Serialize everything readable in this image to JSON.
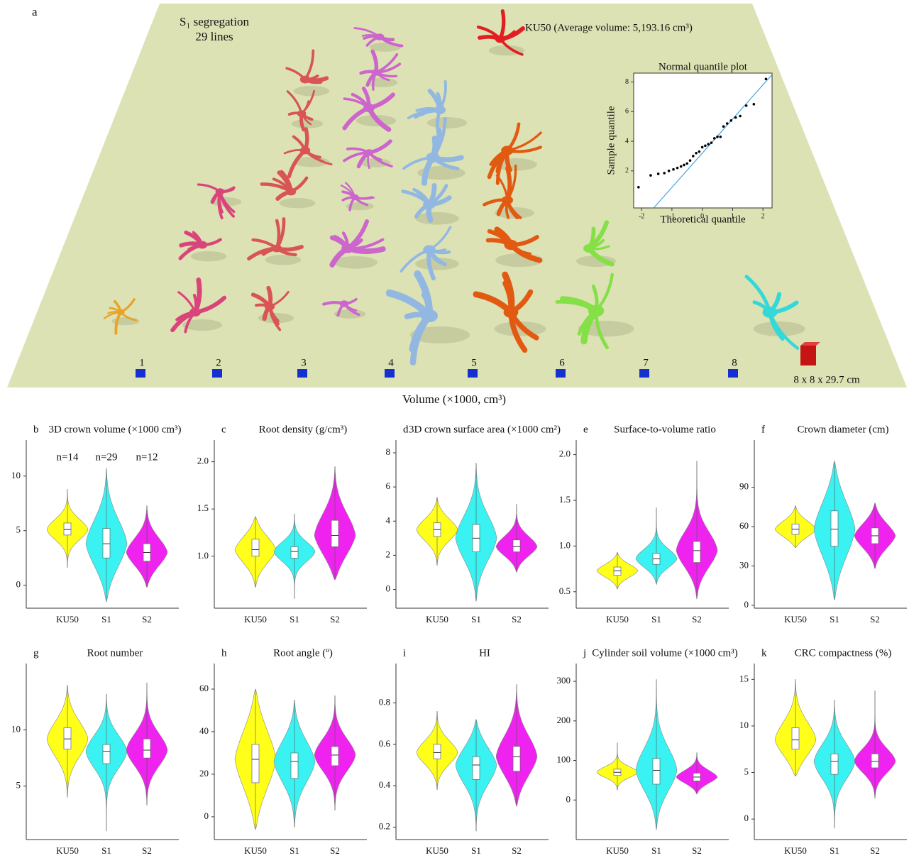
{
  "scene": {
    "label": "a",
    "title": "S₁ segregation",
    "subtitle": "29 lines",
    "reference_note": "KU50 (Average volume: 5,193.16 cm³)",
    "positions": [
      "1",
      "2",
      "3",
      "4",
      "5",
      "6",
      "7",
      "8"
    ],
    "scale_note": "8 x 8 x 29.7 cm",
    "x_label": "Volume (×1000, cm³)"
  },
  "chart_data": [
    {
      "type": "scatter",
      "title": "Normal quantile plot",
      "x_label": "Theoretical  quantile",
      "y_label": "Sample quantile",
      "xlim": [
        -2.26,
        2.3
      ],
      "xticks": [
        -2,
        -1,
        0,
        1,
        2
      ],
      "ylim": [
        -0.5,
        8.6
      ],
      "yticks": [
        2,
        4,
        6,
        8
      ],
      "color": "#000000",
      "x": [
        -2.1,
        -1.7,
        -1.45,
        -1.25,
        -1.1,
        -0.95,
        -0.82,
        -0.7,
        -0.6,
        -0.5,
        -0.4,
        -0.3,
        -0.2,
        -0.1,
        0,
        0.1,
        0.2,
        0.3,
        0.4,
        0.5,
        0.6,
        0.7,
        0.82,
        0.95,
        1.1,
        1.25,
        1.45,
        1.7,
        2.1
      ],
      "y": [
        0.9,
        1.7,
        1.8,
        1.85,
        2.0,
        2.1,
        2.2,
        2.3,
        2.4,
        2.5,
        2.7,
        3.0,
        3.2,
        3.3,
        3.6,
        3.7,
        3.8,
        3.9,
        4.2,
        4.3,
        4.3,
        5.0,
        5.2,
        5.4,
        5.6,
        5.7,
        6.4,
        6.5,
        8.2
      ],
      "reference_line": {
        "x": [
          -1.6,
          2.3
        ],
        "y": [
          -0.5,
          8.5
        ],
        "color": "#4aa3df"
      }
    },
    {
      "type": "violin",
      "label": "b",
      "title": "3D crown volume (×1000 cm³)",
      "ylim": [
        -2.1,
        13.3
      ],
      "yticks": [
        0,
        5,
        10
      ],
      "categories": [
        "KU50",
        "S1",
        "S2"
      ],
      "colors": [
        "#ffff1a",
        "#3af2f2",
        "#f022f0"
      ],
      "annotations": [
        "n=14",
        "n=29",
        "n=12"
      ],
      "min": [
        1.6,
        -1.5,
        -0.2
      ],
      "q1": [
        4.6,
        2.5,
        2.2
      ],
      "median": [
        5.1,
        3.8,
        3.0
      ],
      "q3": [
        5.7,
        5.2,
        3.8
      ],
      "max": [
        8.8,
        10.7,
        7.3
      ]
    },
    {
      "type": "violin",
      "label": "c",
      "title": "Root density (g/cm³)",
      "ylim": [
        0.45,
        2.23
      ],
      "yticks": [
        {
          "value": 1,
          "label": "1.0"
        },
        1.5,
        {
          "value": 2,
          "label": "2.0"
        }
      ],
      "categories": [
        "KU50",
        "S1",
        "S2"
      ],
      "colors": [
        "#ffff1a",
        "#3af2f2",
        "#f022f0"
      ],
      "min": [
        0.67,
        0.55,
        0.75
      ],
      "q1": [
        1.0,
        0.98,
        1.1
      ],
      "median": [
        1.07,
        1.05,
        1.22
      ],
      "q3": [
        1.18,
        1.1,
        1.38
      ],
      "max": [
        1.42,
        1.45,
        1.95
      ]
    },
    {
      "type": "violin",
      "label": "d",
      "title": "3D crown surface area (×1000 cm²)",
      "ylim": [
        -1.1,
        8.75
      ],
      "yticks": [
        0,
        2,
        4,
        6,
        8
      ],
      "categories": [
        "KU50",
        "S1",
        "S2"
      ],
      "colors": [
        "#ffff1a",
        "#3af2f2",
        "#f022f0"
      ],
      "min": [
        1.4,
        -0.7,
        1.0
      ],
      "q1": [
        3.1,
        2.2,
        2.2
      ],
      "median": [
        3.5,
        3.0,
        2.5
      ],
      "q3": [
        3.9,
        3.8,
        2.9
      ],
      "max": [
        5.4,
        7.4,
        5.0
      ]
    },
    {
      "type": "violin",
      "label": "e",
      "title": "Surface-to-volume ratio",
      "ylim": [
        0.32,
        2.16
      ],
      "yticks": [
        0.5,
        {
          "value": 1,
          "label": "1.0"
        },
        1.5,
        {
          "value": 2,
          "label": "2.0"
        }
      ],
      "categories": [
        "KU50",
        "S1",
        "S2"
      ],
      "colors": [
        "#ffff1a",
        "#3af2f2",
        "#f022f0"
      ],
      "min": [
        0.53,
        0.58,
        0.42
      ],
      "q1": [
        0.68,
        0.8,
        0.82
      ],
      "median": [
        0.73,
        0.86,
        0.95
      ],
      "q3": [
        0.77,
        0.92,
        1.05
      ],
      "max": [
        0.93,
        1.42,
        1.93
      ]
    },
    {
      "type": "violin",
      "label": "f",
      "title": "Crown diameter (cm)",
      "ylim": [
        -2.2,
        126
      ],
      "yticks": [
        0,
        30,
        60,
        90
      ],
      "categories": [
        "KU50",
        "S1",
        "S2"
      ],
      "colors": [
        "#ffff1a",
        "#3af2f2",
        "#f022f0"
      ],
      "min": [
        44,
        4,
        28
      ],
      "q1": [
        54,
        45,
        47
      ],
      "median": [
        58,
        58,
        53
      ],
      "q3": [
        62,
        72,
        59
      ],
      "max": [
        76,
        110,
        78
      ]
    },
    {
      "type": "violin",
      "label": "g",
      "title": "Root number",
      "ylim": [
        0.25,
        15.9
      ],
      "yticks": [
        5,
        10
      ],
      "categories": [
        "KU50",
        "S1",
        "S2"
      ],
      "colors": [
        "#ffff1a",
        "#3af2f2",
        "#f022f0"
      ],
      "min": [
        4,
        1,
        3.3
      ],
      "q1": [
        8.3,
        7.0,
        7.5
      ],
      "median": [
        9.2,
        8.1,
        8.2
      ],
      "q3": [
        10.2,
        8.7,
        9.2
      ],
      "max": [
        14,
        13.2,
        14.2
      ]
    },
    {
      "type": "violin",
      "label": "h",
      "title": "Root angle (º)",
      "ylim": [
        -10.7,
        72
      ],
      "yticks": [
        0,
        20,
        40,
        60
      ],
      "categories": [
        "KU50",
        "S1",
        "S2"
      ],
      "colors": [
        "#ffff1a",
        "#3af2f2",
        "#f022f0"
      ],
      "min": [
        -6,
        -5,
        3
      ],
      "q1": [
        16,
        18,
        24
      ],
      "median": [
        27,
        26,
        29
      ],
      "q3": [
        34,
        30,
        33
      ],
      "max": [
        60,
        55,
        57
      ]
    },
    {
      "type": "violin",
      "label": "i",
      "title": "HI",
      "ylim": [
        0.14,
        0.99
      ],
      "yticks": [
        0.2,
        0.4,
        0.6,
        0.8
      ],
      "categories": [
        "KU50",
        "S1",
        "S2"
      ],
      "colors": [
        "#ffff1a",
        "#3af2f2",
        "#f022f0"
      ],
      "min": [
        0.38,
        0.18,
        0.3
      ],
      "q1": [
        0.53,
        0.43,
        0.47
      ],
      "median": [
        0.56,
        0.5,
        0.54
      ],
      "q3": [
        0.6,
        0.54,
        0.59
      ],
      "max": [
        0.76,
        0.72,
        0.89
      ]
    },
    {
      "type": "violin",
      "label": "j",
      "title": "Cylinder soil volume (×1000 cm³)",
      "ylim": [
        -100,
        345
      ],
      "yticks": [
        0,
        100,
        200,
        300
      ],
      "categories": [
        "KU50",
        "S1",
        "S2"
      ],
      "colors": [
        "#ffff1a",
        "#3af2f2",
        "#f022f0"
      ],
      "min": [
        25,
        -75,
        15
      ],
      "q1": [
        62,
        40,
        48
      ],
      "median": [
        70,
        75,
        58
      ],
      "q3": [
        78,
        105,
        68
      ],
      "max": [
        145,
        305,
        120
      ]
    },
    {
      "type": "violin",
      "label": "k",
      "title": "CRC compactness (%)",
      "ylim": [
        -2.2,
        16.7
      ],
      "yticks": [
        0,
        5,
        10,
        15
      ],
      "categories": [
        "KU50",
        "S1",
        "S2"
      ],
      "colors": [
        "#ffff1a",
        "#3af2f2",
        "#f022f0"
      ],
      "min": [
        4.6,
        -1,
        2.2
      ],
      "q1": [
        7.5,
        4.8,
        5.5
      ],
      "median": [
        8.5,
        6.2,
        6.2
      ],
      "q3": [
        9.8,
        7.0,
        7.0
      ],
      "max": [
        15,
        12.8,
        13.8
      ]
    }
  ]
}
